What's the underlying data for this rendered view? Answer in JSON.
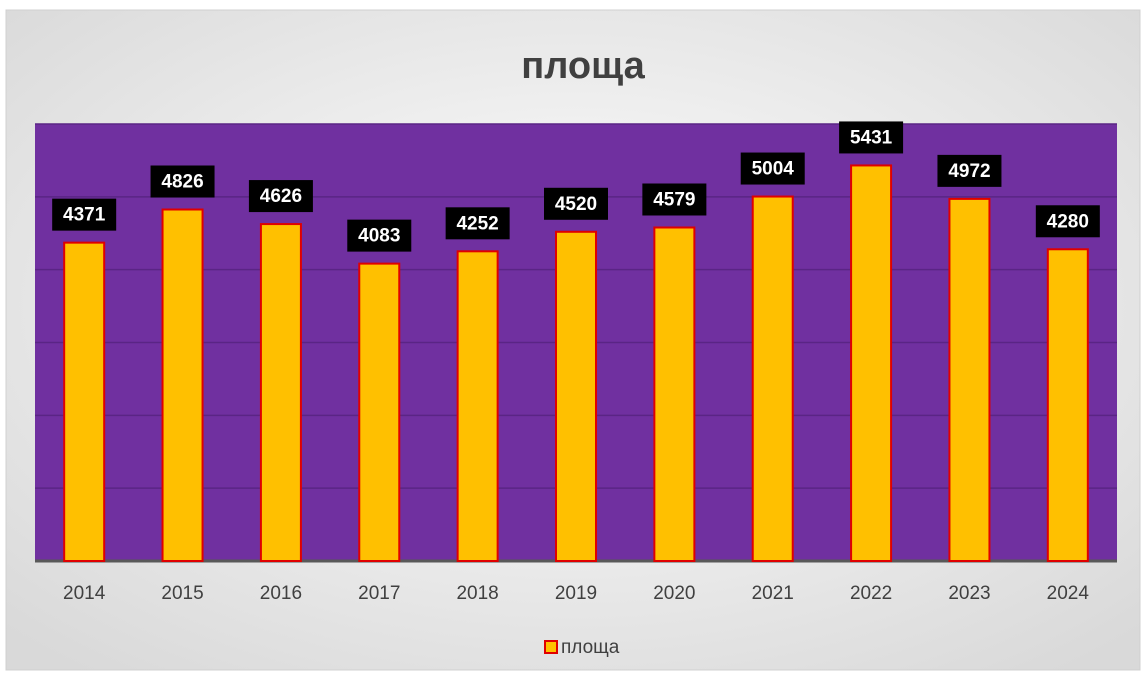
{
  "chart_data": {
    "type": "bar",
    "title": "площа",
    "categories": [
      "2014",
      "2015",
      "2016",
      "2017",
      "2018",
      "2019",
      "2020",
      "2021",
      "2022",
      "2023",
      "2024"
    ],
    "series": [
      {
        "name": "площа",
        "color": "#ffc000",
        "values": [
          4371,
          4826,
          4626,
          4083,
          4252,
          4520,
          4579,
          5004,
          5431,
          4972,
          4280
        ]
      }
    ],
    "ylim": [
      0,
      6000
    ],
    "yticks": [
      0,
      1000,
      2000,
      3000,
      4000,
      5000,
      6000
    ],
    "grid": true,
    "legend": "bottom"
  }
}
